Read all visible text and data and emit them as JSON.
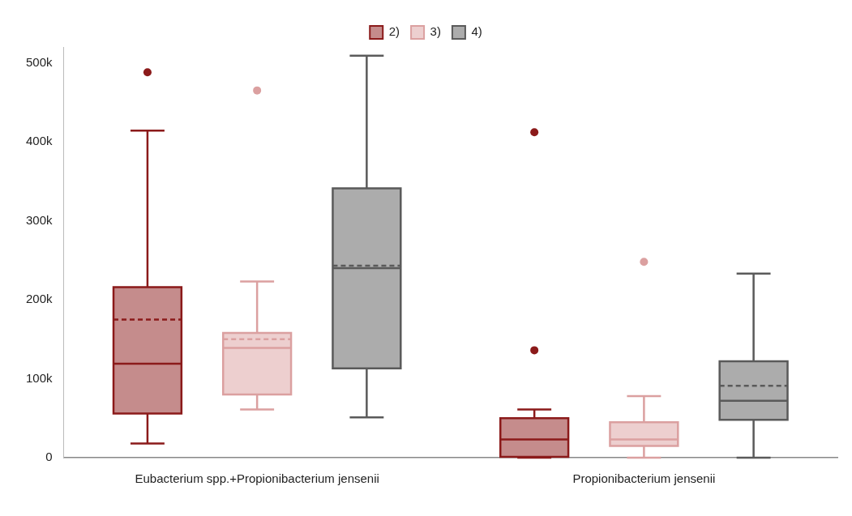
{
  "chart_data": {
    "type": "box",
    "categories": [
      "Eubacterium spp.+Propionibacterium jensenii",
      "Propionibacterium jensenii"
    ],
    "series": [
      {
        "name": "2)",
        "color": "#8b1a1a",
        "boxes": [
          {
            "low": 18000,
            "q1": 56000,
            "median": 119000,
            "q3": 216000,
            "high": 414000,
            "mean": 175000,
            "outliers": [
              488000
            ]
          },
          {
            "low": 0,
            "q1": 1000,
            "median": 23000,
            "q3": 50000,
            "high": 61000,
            "outliers": [
              136000,
              412000
            ]
          }
        ]
      },
      {
        "name": "3)",
        "color": "#dba0a0",
        "boxes": [
          {
            "low": 61000,
            "q1": 80000,
            "median": 139000,
            "q3": 158000,
            "high": 223000,
            "mean": 150000,
            "outliers": [
              465000
            ]
          },
          {
            "low": 0,
            "q1": 15000,
            "median": 23000,
            "q3": 45000,
            "high": 78000,
            "outliers": [
              248000
            ]
          }
        ]
      },
      {
        "name": "4)",
        "color": "#5a5a5a",
        "boxes": [
          {
            "low": 51000,
            "q1": 113000,
            "median": 240000,
            "q3": 341000,
            "high": 509000,
            "mean": 243000
          },
          {
            "low": 0,
            "q1": 48000,
            "median": 72000,
            "q3": 122000,
            "high": 233000,
            "mean": 91000
          }
        ]
      }
    ],
    "ylim": [
      0,
      520000
    ],
    "yticks": [
      0,
      {
        "value": 100000,
        "label": "100k"
      },
      {
        "value": 200000,
        "label": "200k"
      },
      {
        "value": 300000,
        "label": "300k"
      },
      {
        "value": 400000,
        "label": "400k"
      },
      {
        "value": 500000,
        "label": "500k"
      }
    ],
    "grid": false,
    "legend": "top"
  }
}
